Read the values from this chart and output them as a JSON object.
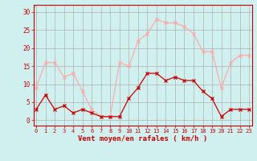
{
  "hours": [
    0,
    1,
    2,
    3,
    4,
    5,
    6,
    7,
    8,
    9,
    10,
    11,
    12,
    13,
    14,
    15,
    16,
    17,
    18,
    19,
    20,
    21,
    22,
    23
  ],
  "vent_moyen": [
    3,
    7,
    3,
    4,
    2,
    3,
    2,
    1,
    1,
    1,
    6,
    9,
    13,
    13,
    11,
    12,
    11,
    11,
    8,
    6,
    1,
    3,
    3,
    3
  ],
  "rafales": [
    9,
    16,
    16,
    12,
    13,
    8,
    3,
    1,
    1,
    16,
    15,
    22,
    24,
    28,
    27,
    27,
    26,
    24,
    19,
    19,
    9,
    16,
    18,
    18
  ],
  "line_color_moyen": "#cc0000",
  "line_color_rafales": "#ffaaaa",
  "bg_color": "#d0f0f0",
  "grid_color": "#b0b0b0",
  "xlabel": "Vent moyen/en rafales ( km/h )",
  "yticks": [
    0,
    5,
    10,
    15,
    20,
    25,
    30
  ],
  "ylim": [
    -1.5,
    32
  ],
  "xlim": [
    -0.3,
    23.3
  ],
  "title_color": "#cc0000",
  "axis_color": "#cc0000",
  "tick_color": "#cc0000",
  "xlabel_fontsize": 6.5,
  "tick_fontsize": 5.0,
  "ytick_fontsize": 5.5
}
